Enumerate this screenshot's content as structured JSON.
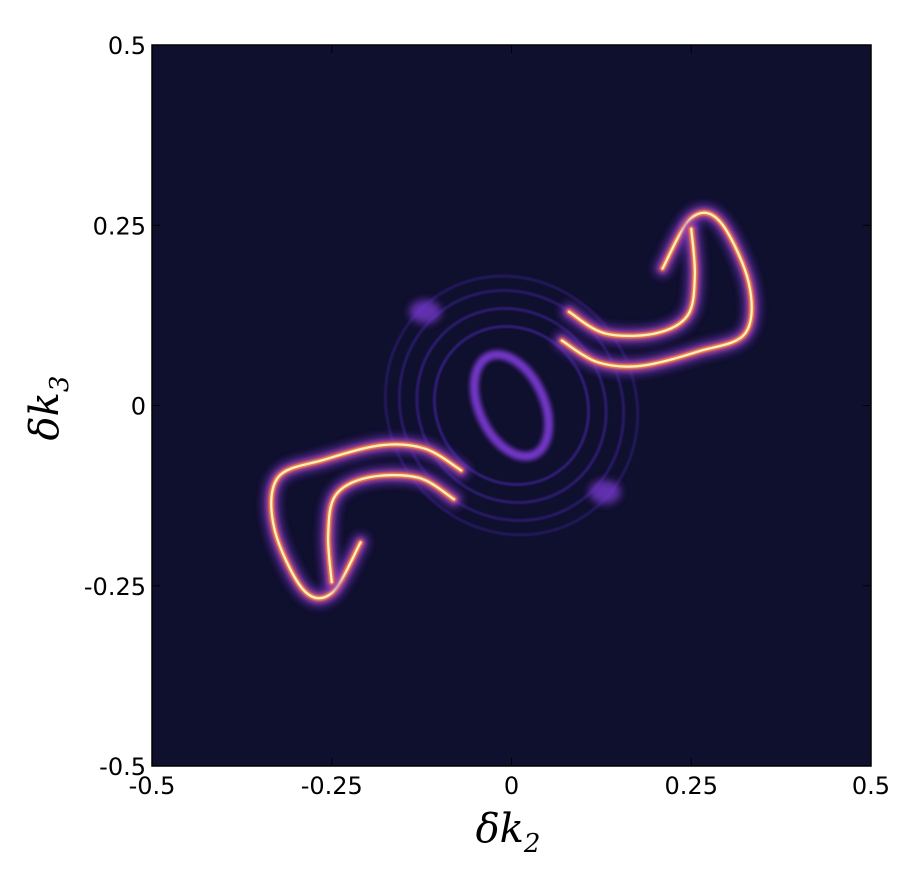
{
  "chart_data": {
    "type": "heatmap",
    "title": "",
    "xlabel": {
      "main": "δk",
      "sub": "2"
    },
    "ylabel": {
      "main": "δk",
      "sub": "3"
    },
    "xlim": [
      -0.5,
      0.5
    ],
    "ylim": [
      -0.5,
      0.5
    ],
    "x_ticks": [
      -0.5,
      -0.25,
      0,
      0.25,
      0.5
    ],
    "y_ticks": [
      -0.5,
      -0.25,
      0,
      0.25,
      0.5
    ],
    "x_tick_labels": [
      "-0.5",
      "-0.25",
      "0",
      "0.25",
      "0.5"
    ],
    "y_tick_labels": [
      "-0.5",
      "-0.25",
      "0",
      "0.25",
      "0.5"
    ],
    "grid": false,
    "colormap": [
      "#0f0f2e",
      "#4a2bb0",
      "#7d3ad6",
      "#c74e8a",
      "#f08a3c",
      "#fff2c0"
    ],
    "background_color": "#0f0f2e",
    "features": {
      "central_ring": {
        "cx": 0,
        "cy": 0,
        "rx": 0.045,
        "ry": 0.075,
        "rotation_deg": -25,
        "intensity": 0.35
      },
      "concentric_rings": {
        "cx": 0,
        "cy": 0,
        "radii": [
          0.11,
          0.135,
          0.16,
          0.18
        ],
        "intensity": 0.25
      },
      "arm_upper_right": {
        "outer": [
          [
            0.21,
            0.19
          ],
          [
            0.25,
            0.26
          ],
          [
            0.29,
            0.255
          ],
          [
            0.33,
            0.17
          ],
          [
            0.325,
            0.1
          ],
          [
            0.26,
            0.075
          ],
          [
            0.18,
            0.055
          ],
          [
            0.12,
            0.06
          ],
          [
            0.07,
            0.09
          ]
        ],
        "inner": [
          [
            0.25,
            0.245
          ],
          [
            0.255,
            0.18
          ],
          [
            0.245,
            0.125
          ],
          [
            0.2,
            0.1
          ],
          [
            0.13,
            0.1
          ],
          [
            0.08,
            0.13
          ]
        ]
      },
      "arm_lower_left": {
        "outer": [
          [
            -0.21,
            -0.19
          ],
          [
            -0.25,
            -0.26
          ],
          [
            -0.29,
            -0.255
          ],
          [
            -0.33,
            -0.17
          ],
          [
            -0.325,
            -0.1
          ],
          [
            -0.26,
            -0.075
          ],
          [
            -0.18,
            -0.055
          ],
          [
            -0.12,
            -0.06
          ],
          [
            -0.07,
            -0.09
          ]
        ],
        "inner": [
          [
            -0.25,
            -0.245
          ],
          [
            -0.255,
            -0.18
          ],
          [
            -0.245,
            -0.125
          ],
          [
            -0.2,
            -0.1
          ],
          [
            -0.13,
            -0.1
          ],
          [
            -0.08,
            -0.13
          ]
        ]
      },
      "side_blobs": [
        [
          -0.12,
          0.13
        ],
        [
          0.13,
          -0.12
        ]
      ]
    }
  }
}
